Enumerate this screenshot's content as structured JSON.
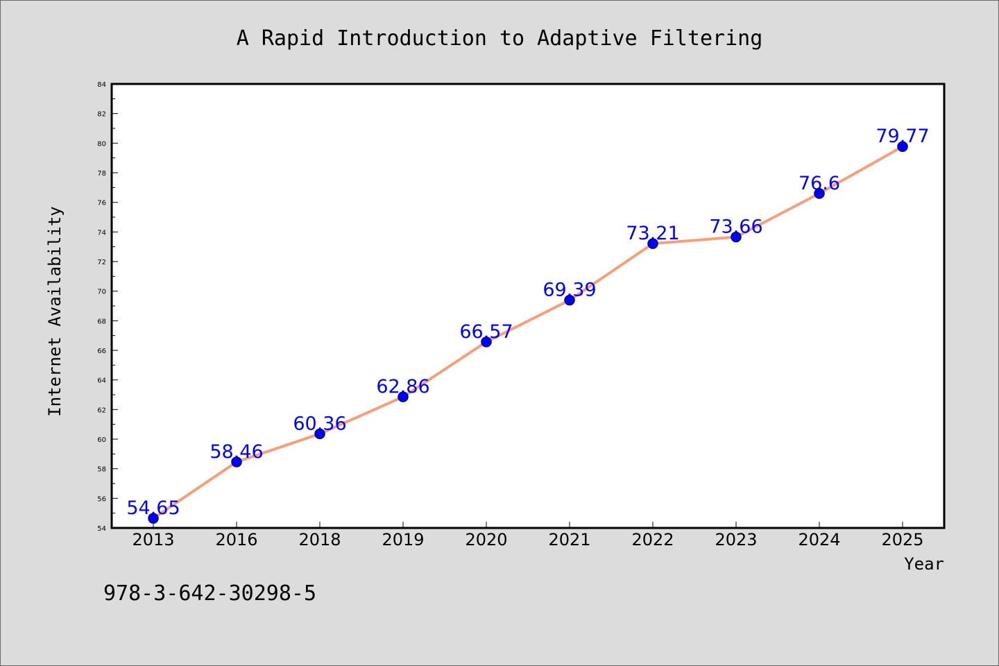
{
  "chart_data": {
    "type": "line",
    "title": "A Rapid Introduction to Adaptive Filtering",
    "xlabel": "Year",
    "ylabel": "Internet Availability",
    "categories": [
      "2013",
      "2016",
      "2018",
      "2019",
      "2020",
      "2021",
      "2022",
      "2023",
      "2024",
      "2025"
    ],
    "series": [
      {
        "values": [
          54.65,
          58.46,
          60.36,
          62.86,
          66.57,
          69.39,
          73.21,
          73.66,
          76.6,
          79.77
        ],
        "data_labels": [
          "54.65",
          "58.46",
          "60.36",
          "62.86",
          "66.57",
          "69.39",
          "73.21",
          "73.66",
          "76.6",
          "79.77"
        ]
      }
    ],
    "ylim": [
      54,
      84
    ],
    "yticks": [
      "54",
      "56",
      "58",
      "60",
      "62",
      "64",
      "66",
      "68",
      "70",
      "72",
      "74",
      "76",
      "78",
      "80",
      "82",
      "84"
    ],
    "grid": false,
    "legend": "none",
    "annotation": "978-3-642-30298-5",
    "colors": {
      "line": "#f4a07a",
      "marker": "#0000ff",
      "marker_edge": "#000080",
      "data_label": "#0000ff",
      "plot_background": "#ffffff",
      "figure_background": "#dcdcdc"
    }
  }
}
